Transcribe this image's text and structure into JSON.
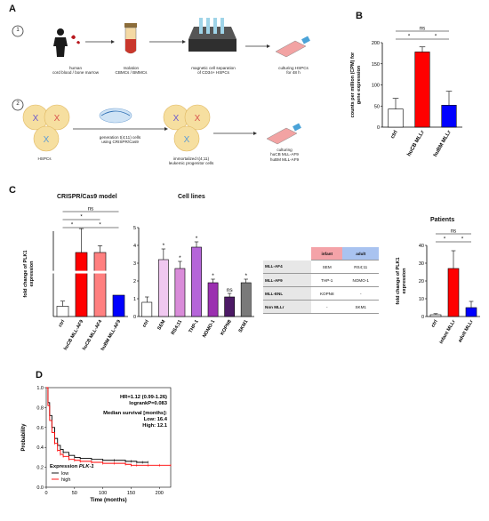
{
  "panel_a": {
    "letter": "A",
    "step1": {
      "number": "1",
      "items": [
        {
          "line1": "human",
          "line2": "cord blood / bone marrow",
          "line3": ""
        },
        {
          "line1": "Isolation",
          "line2": "CBMCs / BMMCs",
          "line3": ""
        },
        {
          "line1": "magnetic cell separation",
          "line2": "of CD34+ HSPCs",
          "line3": ""
        },
        {
          "line1": "culturing HSPCs",
          "line2": "for 48 h",
          "line3": ""
        }
      ]
    },
    "step2": {
      "number": "2",
      "items": [
        {
          "line1": "HSPCs",
          "line2": "",
          "line3": ""
        },
        {
          "line1": "generation t(4;11) cells",
          "line2": "using CRISPR/Cas9",
          "line3": ""
        },
        {
          "line1": "immortalized t(4;11)",
          "line2": "leukemic progenitor cells",
          "line3": ""
        },
        {
          "line1": "culturing",
          "line2": "huCB MLL-AF9",
          "line3": "huBM MLL-AF9"
        }
      ]
    }
  },
  "panel_b": {
    "letter": "B",
    "chart_data": {
      "type": "bar",
      "ylabel_line1": "counts per million (CPM) for",
      "ylabel_line2": "gene expression",
      "ylim": [
        0,
        200
      ],
      "yticks": [
        "0",
        "50",
        "100",
        "150",
        "200"
      ],
      "categories": [
        "ctrl",
        "huCB MLLr",
        "huBM MLLr"
      ],
      "values": [
        43,
        178,
        52
      ],
      "errors": [
        25,
        12,
        33
      ],
      "colors": [
        "#ffffff",
        "#ff0000",
        "#0000ff"
      ],
      "sig": [
        {
          "label": "ns",
          "from": 0,
          "to": 2,
          "level": 2
        },
        {
          "label": "*",
          "from": 0,
          "to": 1,
          "level": 1
        },
        {
          "label": "*",
          "from": 1,
          "to": 2,
          "level": 1
        }
      ]
    }
  },
  "panel_c": {
    "letter": "C",
    "crispr": {
      "title": "CRISPR/Cas9 model",
      "chart_data": {
        "type": "bar",
        "ylabel_line1": "fold change of PLK1",
        "ylabel_line2": "expression",
        "ylim": [
          0,
          100
        ],
        "categories": [
          "ctrl",
          "huCB MLL-AF9",
          "huCB MLL-AF4",
          "huBM MLL-AF9"
        ],
        "values": [
          1.2,
          7.5,
          7.5,
          2.5
        ],
        "errors": [
          0.6,
          2.8,
          0.8,
          0
        ],
        "colors": [
          "#ffffff",
          "#ff0000",
          "#ff8080",
          "#0000ff"
        ],
        "sig": [
          {
            "label": "ns",
            "from": 0,
            "to": 3,
            "level": 3
          },
          {
            "label": "*",
            "from": 0,
            "to": 2,
            "level": 2
          },
          {
            "label": "*",
            "from": 0,
            "to": 1,
            "level": 1
          },
          {
            "label": "*",
            "from": 1,
            "to": 3,
            "level": 1
          }
        ]
      }
    },
    "cell_lines": {
      "title": "Cell lines",
      "chart_data": {
        "type": "bar",
        "ylim": [
          0,
          5
        ],
        "yticks": [
          "0",
          "1",
          "2",
          "3",
          "4",
          "5"
        ],
        "categories": [
          "ctrl",
          "SEM",
          "RS4;11",
          "THP-1",
          "NOMO-1",
          "KOPN8",
          "SKM1"
        ],
        "values": [
          0.8,
          3.2,
          2.7,
          3.9,
          1.9,
          1.1,
          1.9
        ],
        "errors": [
          0.3,
          0.6,
          0.4,
          0.3,
          0.2,
          0.2,
          0.2
        ],
        "colors": [
          "#ffffff",
          "#f0c8f0",
          "#d98cd9",
          "#b565d9",
          "#9b30b0",
          "#4d1a66",
          "#7a7a7a"
        ],
        "sig_labels": [
          "",
          "*",
          "*",
          "*",
          "*",
          "ns",
          "*"
        ]
      }
    },
    "table": {
      "col_infant": "infant",
      "col_adult": "adult",
      "rows": [
        {
          "label": "MLL-AF4",
          "infant": "SEM",
          "adult": "RS4;11"
        },
        {
          "label": "MLL-AF9",
          "infant": "THP-1",
          "adult": "NOMO-1"
        },
        {
          "label": "MLL-ENL",
          "infant": "KOPN8",
          "adult": "-"
        },
        {
          "label": "Non MLLr",
          "infant": "-",
          "adult": "SKM1"
        }
      ]
    },
    "patients": {
      "title": "Patients",
      "chart_data": {
        "type": "bar",
        "ylabel_line1": "fold change of PLK1",
        "ylabel_line2": "expression",
        "ylim": [
          0,
          40
        ],
        "yticks": [
          "0",
          "10",
          "20",
          "30",
          "40"
        ],
        "categories": [
          "ctrl",
          "infant MLLr",
          "adult MLLr"
        ],
        "values": [
          1,
          27,
          5
        ],
        "errors": [
          0.6,
          10,
          3.5
        ],
        "colors": [
          "#ffffff",
          "#ff0000",
          "#0000ff"
        ],
        "sig": [
          {
            "label": "ns",
            "from": 0,
            "to": 2,
            "level": 2
          },
          {
            "label": "*",
            "from": 0,
            "to": 1,
            "level": 1
          },
          {
            "label": "*",
            "from": 1,
            "to": 2,
            "level": 1
          }
        ]
      }
    }
  },
  "panel_d": {
    "letter": "D",
    "chart_data": {
      "type": "line",
      "ylabel": "Probability",
      "xlabel": "Time (months)",
      "xlim": [
        0,
        220
      ],
      "ylim": [
        0,
        1
      ],
      "xticks": [
        "0",
        "50",
        "100",
        "150",
        "200"
      ],
      "yticks": [
        "0.0",
        "0.2",
        "0.4",
        "0.6",
        "0.8",
        "1.0"
      ],
      "stats": {
        "hr": "HR=1.12 (0.99-1.26)",
        "logrank": "logrankP=0.083",
        "median_title": "Median survival [months]:",
        "low": "Low: 16.4",
        "high": "High: 12.1"
      },
      "legend_title": "Expression",
      "legend_gene": "PLK-1",
      "series": [
        {
          "name": "low",
          "color": "#000000",
          "x": [
            0,
            3,
            6,
            10,
            15,
            20,
            25,
            30,
            40,
            50,
            60,
            80,
            100,
            120,
            140,
            150,
            160,
            170,
            180
          ],
          "y": [
            1.0,
            0.85,
            0.72,
            0.6,
            0.49,
            0.42,
            0.38,
            0.35,
            0.32,
            0.3,
            0.29,
            0.28,
            0.27,
            0.27,
            0.26,
            0.26,
            0.25,
            0.25,
            0.25
          ]
        },
        {
          "name": "high",
          "color": "#ff0000",
          "x": [
            0,
            3,
            6,
            10,
            15,
            20,
            25,
            30,
            40,
            50,
            60,
            80,
            100,
            120,
            140,
            150,
            160,
            180,
            200,
            220
          ],
          "y": [
            1.0,
            0.82,
            0.67,
            0.55,
            0.44,
            0.37,
            0.33,
            0.31,
            0.28,
            0.27,
            0.26,
            0.25,
            0.24,
            0.24,
            0.23,
            0.22,
            0.22,
            0.22,
            0.22,
            0.22
          ]
        }
      ]
    }
  }
}
